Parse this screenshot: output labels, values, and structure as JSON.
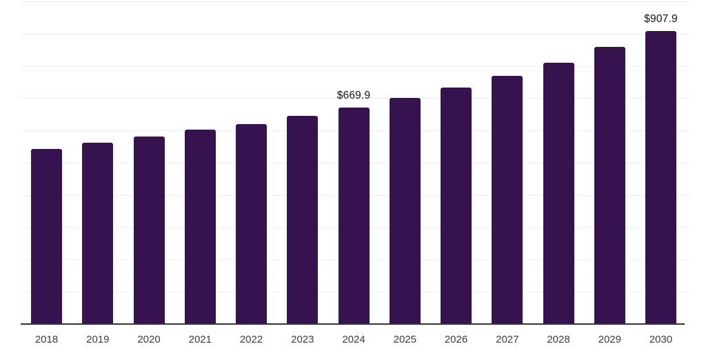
{
  "chart_data": {
    "type": "bar",
    "title": "",
    "subtitle": "",
    "xlabel": "",
    "ylabel": "",
    "legend": "none",
    "y_axis_tick_labels": "none (implied scale)",
    "ylim": [
      0,
      1000
    ],
    "gridline_step": 100,
    "grid": "horizontal",
    "categories": [
      "2018",
      "2019",
      "2020",
      "2021",
      "2022",
      "2023",
      "2024",
      "2025",
      "2026",
      "2027",
      "2028",
      "2029",
      "2030"
    ],
    "values": [
      543,
      561,
      581,
      602,
      620,
      644,
      669.9,
      700,
      733,
      770,
      810,
      858,
      907.9
    ],
    "data_labels": [
      null,
      null,
      null,
      null,
      null,
      null,
      "$669.9",
      null,
      null,
      null,
      null,
      null,
      "$907.9"
    ],
    "colors": {
      "bar_fill": "#36124e",
      "gridline": "#f0f0f0",
      "axis_line": "#333333",
      "x_tick_label": "#3d3d3d",
      "value_label": "#111111",
      "background": "#ffffff"
    }
  }
}
